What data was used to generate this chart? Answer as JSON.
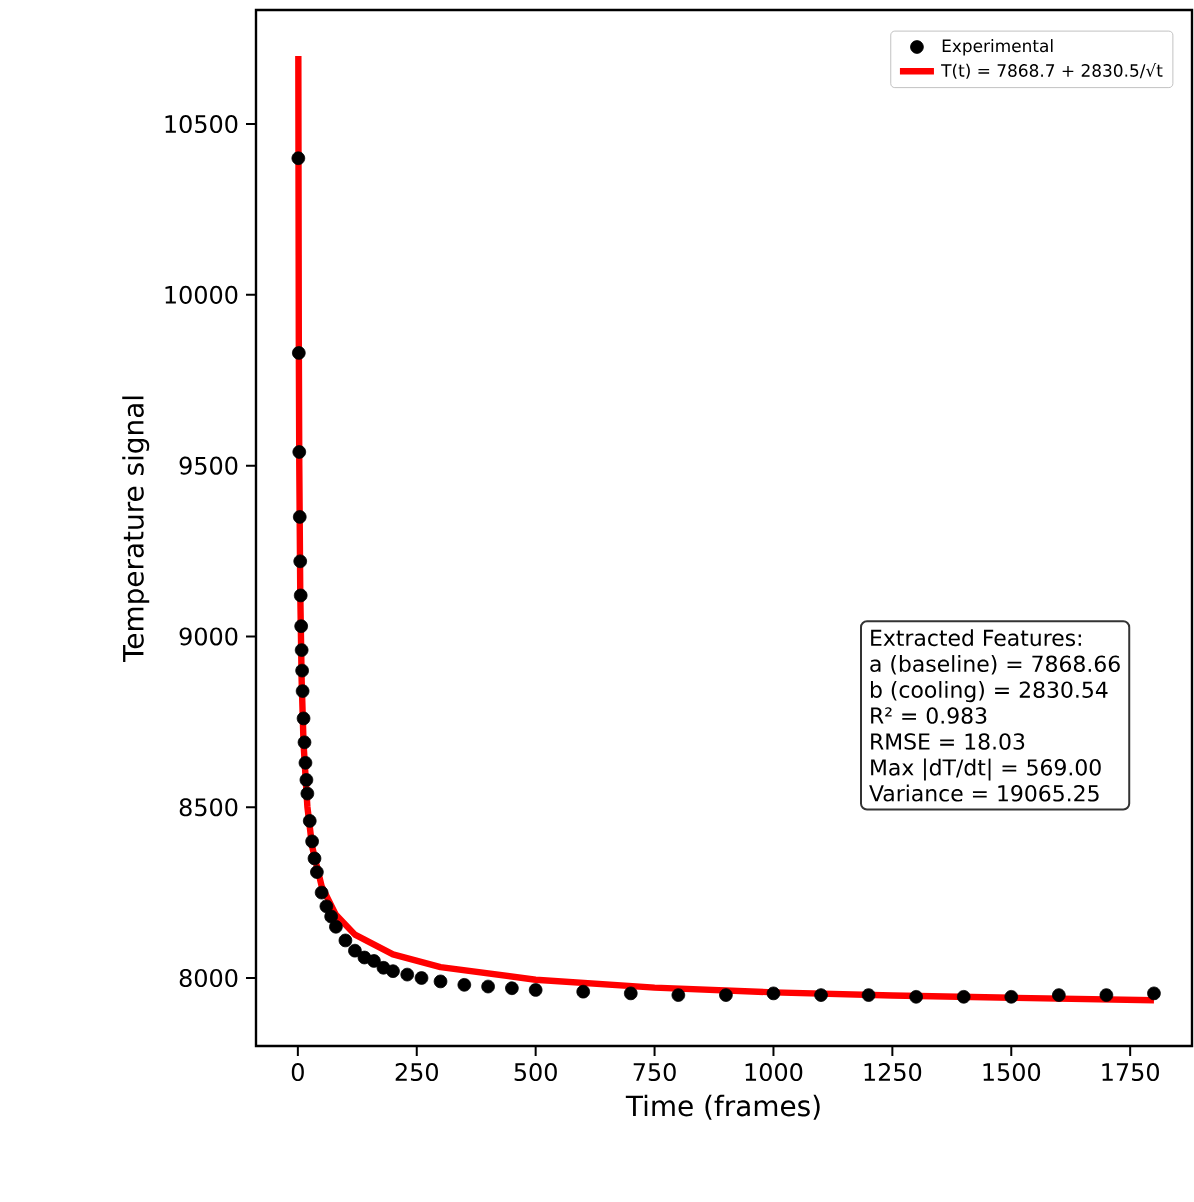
{
  "chart_data": {
    "type": "scatter",
    "xlabel": "Time (frames)",
    "ylabel": "Temperature signal",
    "xlim": [
      -88,
      1880
    ],
    "ylim": [
      7801,
      10834
    ],
    "xticks": [
      0,
      250,
      500,
      750,
      1000,
      1250,
      1500,
      1750
    ],
    "yticks": [
      8000,
      8500,
      9000,
      9500,
      10000,
      10500
    ],
    "legend": "top right",
    "grid": false,
    "series": [
      {
        "name": "Experimental",
        "color": "#000000",
        "marker": "circle",
        "x": [
          1,
          2,
          3,
          4,
          5,
          6,
          7,
          8,
          9,
          10,
          12,
          14,
          16,
          18,
          20,
          25,
          30,
          35,
          40,
          50,
          60,
          70,
          80,
          100,
          120,
          140,
          160,
          180,
          200,
          230,
          260,
          300,
          350,
          400,
          450,
          500,
          600,
          700,
          800,
          900,
          1000,
          1100,
          1200,
          1300,
          1400,
          1500,
          1600,
          1700,
          1800
        ],
        "values": [
          10400,
          9830,
          9540,
          9350,
          9220,
          9120,
          9030,
          8960,
          8900,
          8840,
          8760,
          8690,
          8630,
          8580,
          8540,
          8460,
          8400,
          8350,
          8310,
          8250,
          8210,
          8180,
          8150,
          8110,
          8080,
          8060,
          8050,
          8030,
          8020,
          8010,
          8000,
          7990,
          7980,
          7975,
          7970,
          7965,
          7960,
          7955,
          7950,
          7950,
          7955,
          7950,
          7950,
          7945,
          7945,
          7945,
          7950,
          7950,
          7955
        ]
      },
      {
        "name": "T(t) = 7868.7 + 2830.5/√t",
        "type": "line",
        "color": "#ff0000",
        "marker": "none",
        "line_style": "solid",
        "x": [
          1,
          2,
          3,
          5,
          8,
          12,
          20,
          30,
          50,
          80,
          120,
          200,
          300,
          500,
          750,
          1000,
          1250,
          1500,
          1800
        ],
        "values": [
          10699,
          9870,
          9503,
          9135,
          8870,
          8686,
          8502,
          8385,
          8269,
          8185,
          8127,
          8069,
          8032,
          7995,
          7972,
          7958,
          7949,
          7942,
          7935
        ]
      }
    ],
    "annotations": [
      "Extracted Features:",
      "a (baseline) = 7868.66",
      "b (cooling) = 2830.54",
      "R² = 0.983",
      "RMSE = 18.03",
      "Max |dT/dt| = 569.00",
      "Variance = 19065.25"
    ]
  }
}
